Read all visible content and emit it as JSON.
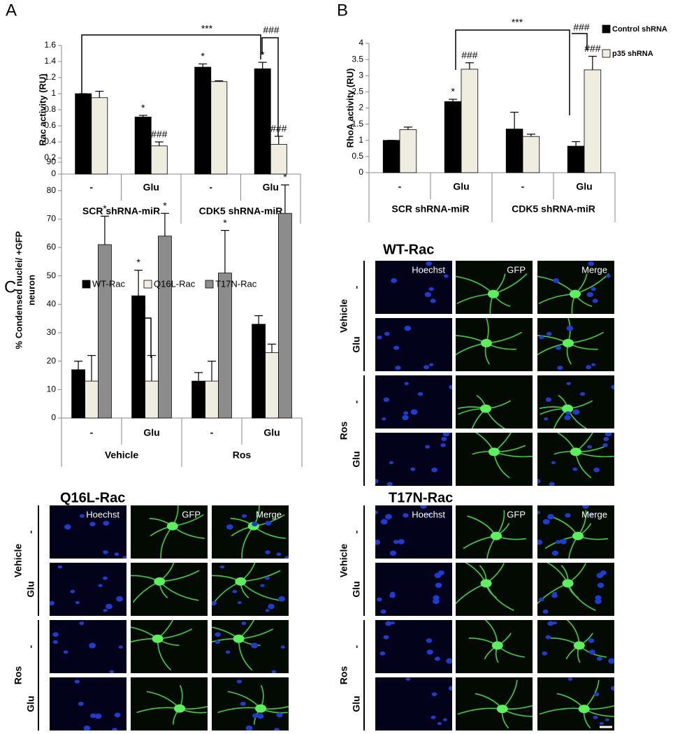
{
  "panel_labels": [
    "A",
    "B",
    "C"
  ],
  "chart_data": [
    {
      "type": "bar",
      "y_label": "Rac activity (RU)",
      "categories": [
        "-",
        "Glu",
        "-",
        "Glu"
      ],
      "group_labels": [
        "SCR shRNA-miR",
        "CDK5 shRNA-miR"
      ],
      "ylim": [
        0,
        1.6
      ],
      "yticks": [
        0,
        0.2,
        0.4,
        0.6,
        0.8,
        1,
        1.2,
        1.4,
        1.6
      ],
      "series": [
        {
          "color": "#000000",
          "values": [
            1.0,
            0.71,
            1.33,
            1.31
          ],
          "errors": [
            0,
            0.02,
            0.04,
            0.08
          ],
          "significance": [
            null,
            "*",
            "*",
            "*"
          ]
        },
        {
          "color": "#efece0",
          "values": [
            0.95,
            0.35,
            1.15,
            0.37
          ],
          "errors": [
            0.08,
            0.05,
            0.01,
            0.1
          ],
          "significance": [
            null,
            "###",
            null,
            "###"
          ]
        }
      ],
      "annotations": [
        "***",
        "###"
      ]
    },
    {
      "type": "bar",
      "y_label": "RhoA activity (RU)",
      "categories": [
        "-",
        "Glu",
        "-",
        "Glu"
      ],
      "group_labels": [
        "SCR shRNA-miR",
        "CDK5 shRNA-miR"
      ],
      "ylim": [
        0,
        4
      ],
      "yticks": [
        0,
        0.5,
        1,
        1.5,
        2,
        2.5,
        3,
        3.5,
        4
      ],
      "series": [
        {
          "name": "Control shRNA",
          "color": "#000000",
          "values": [
            1.0,
            2.2,
            1.35,
            0.82
          ],
          "errors": [
            0,
            0.07,
            0.52,
            0.14
          ],
          "significance": [
            null,
            "*",
            null,
            null
          ]
        },
        {
          "name": "p35 shRNA",
          "color": "#efece0",
          "values": [
            1.33,
            3.2,
            1.12,
            3.18
          ],
          "errors": [
            0.08,
            0.2,
            0.07,
            0.42
          ],
          "significance": [
            null,
            "###",
            null,
            "###"
          ]
        }
      ],
      "annotations": [
        "***",
        "###"
      ]
    },
    {
      "type": "bar",
      "y_label": [
        "% Condensed nuclei/ +GFP",
        "neuron"
      ],
      "categories": [
        "-",
        "Glu",
        "-",
        "Glu"
      ],
      "group_labels": [
        "Vehicle",
        "Ros"
      ],
      "ylim": [
        0,
        90
      ],
      "yticks": [
        0,
        10,
        20,
        30,
        40,
        50,
        60,
        70,
        80,
        90
      ],
      "series": [
        {
          "name": "WT-Rac",
          "color": "#000000",
          "values": [
            17,
            43,
            13,
            33
          ],
          "errors": [
            3,
            9,
            3,
            3
          ],
          "significance": [
            null,
            "*",
            null,
            null
          ]
        },
        {
          "name": "Q16L-Rac",
          "color": "#efece0",
          "values": [
            13,
            13,
            13,
            23
          ],
          "errors": [
            9,
            9,
            7,
            3
          ]
        },
        {
          "name": "T17N-Rac",
          "color": "#8c8c8c",
          "values": [
            61,
            64,
            51,
            72
          ],
          "errors": [
            10,
            8,
            15,
            10
          ],
          "significance": [
            "*",
            "*",
            "*",
            "*"
          ]
        }
      ],
      "annotations": [
        "*"
      ]
    }
  ],
  "image_grids": [
    {
      "title": "WT-Rac",
      "columns": [
        "Hoechst",
        "GFP",
        "Merge"
      ],
      "groups": [
        {
          "name": "Vehicle",
          "rows": [
            "-",
            "Glu"
          ]
        },
        {
          "name": "Ros",
          "rows": [
            "-",
            "Glu"
          ]
        }
      ]
    },
    {
      "title": "Q16L-Rac",
      "columns": [
        "Hoechst",
        "GFP",
        "Merge"
      ],
      "groups": [
        {
          "name": "Vehicle",
          "rows": [
            "-",
            "Glu"
          ]
        },
        {
          "name": "Ros",
          "rows": [
            "-",
            "Glu"
          ]
        }
      ]
    },
    {
      "title": "T17N-Rac",
      "columns": [
        "Hoechst",
        "GFP",
        "Merge"
      ],
      "groups": [
        {
          "name": "Vehicle",
          "rows": [
            "-",
            "Glu"
          ]
        },
        {
          "name": "Ros",
          "rows": [
            "-",
            "Glu"
          ]
        }
      ]
    }
  ]
}
